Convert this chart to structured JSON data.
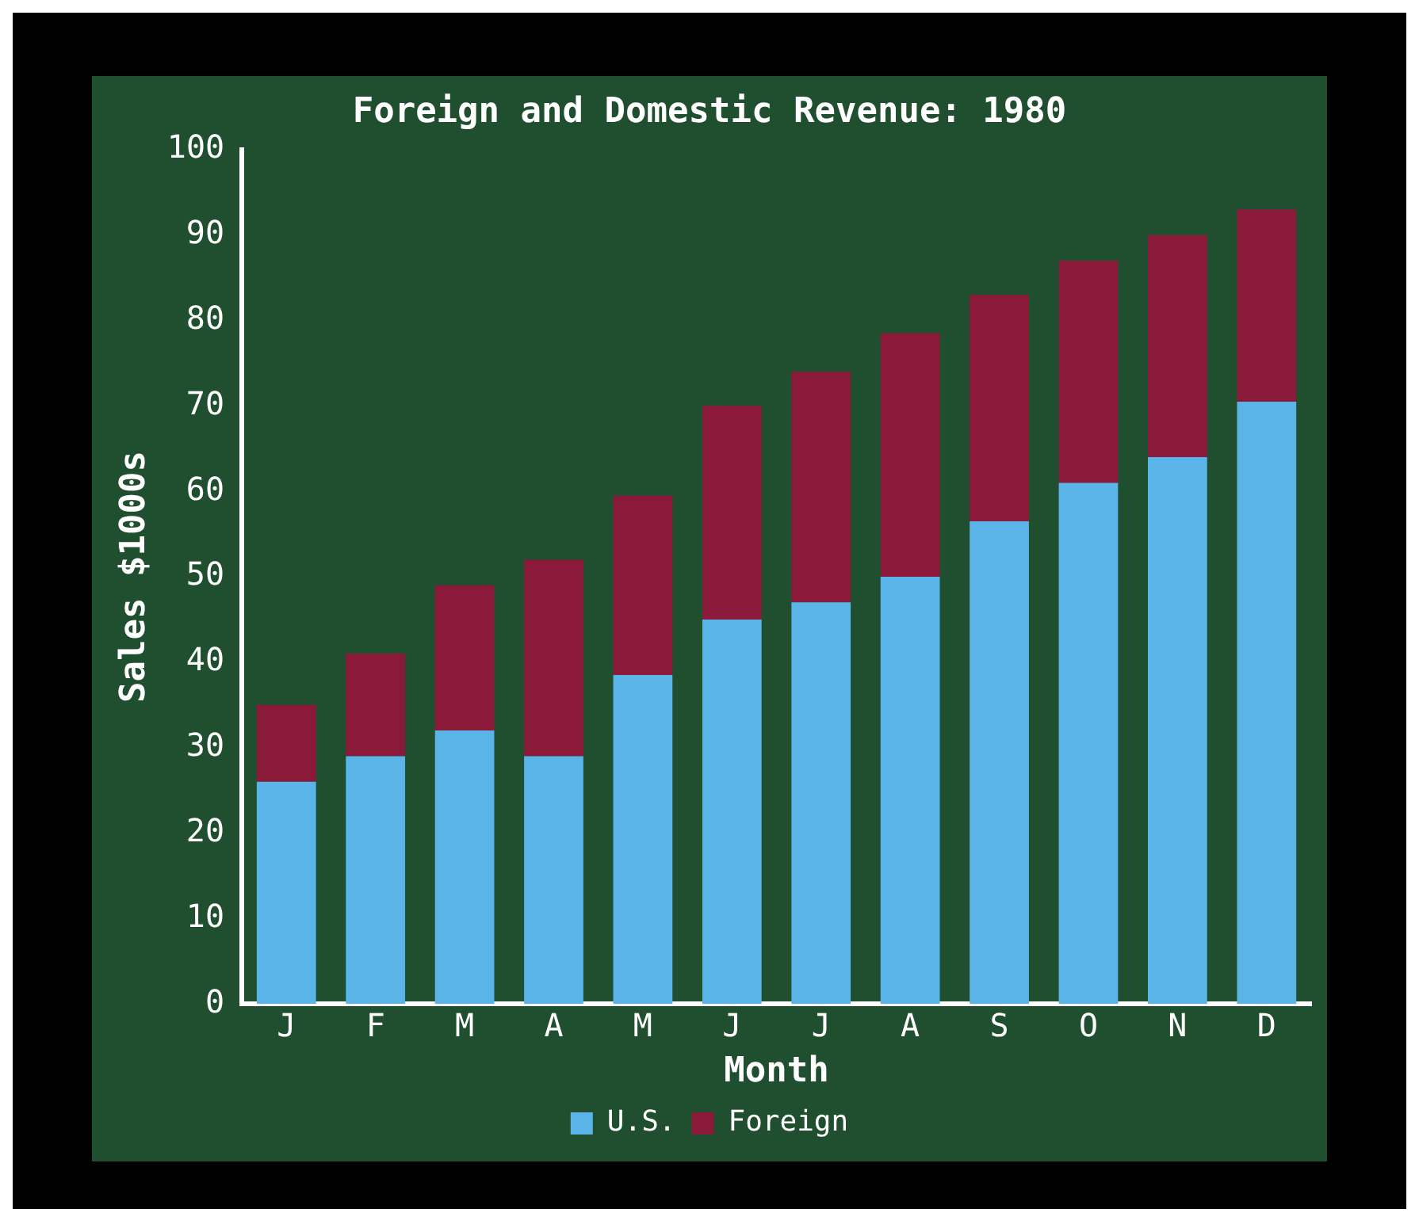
{
  "chart_data": {
    "type": "bar",
    "title": "Foreign and Domestic Revenue: 1980",
    "xlabel": "Month",
    "ylabel": "Sales $1000s",
    "categories": [
      "J",
      "F",
      "M",
      "A",
      "M",
      "J",
      "J",
      "A",
      "S",
      "O",
      "N",
      "D"
    ],
    "stacked": true,
    "series": [
      {
        "name": "U.S.",
        "color": "#5ab4e8",
        "values": [
          26,
          29,
          32,
          29,
          38.5,
          45,
          47,
          50,
          56.5,
          61,
          64,
          70.5
        ]
      },
      {
        "name": "Foreign",
        "color": "#8b1a3a",
        "values": [
          9,
          12,
          17,
          23,
          21,
          25,
          27,
          28.5,
          26.5,
          26,
          26,
          22.5
        ]
      }
    ],
    "ylim": [
      0,
      100
    ],
    "yticks": [
      0,
      10,
      20,
      30,
      40,
      50,
      60,
      70,
      80,
      90,
      100
    ],
    "grid": false,
    "legend": "bottom"
  }
}
